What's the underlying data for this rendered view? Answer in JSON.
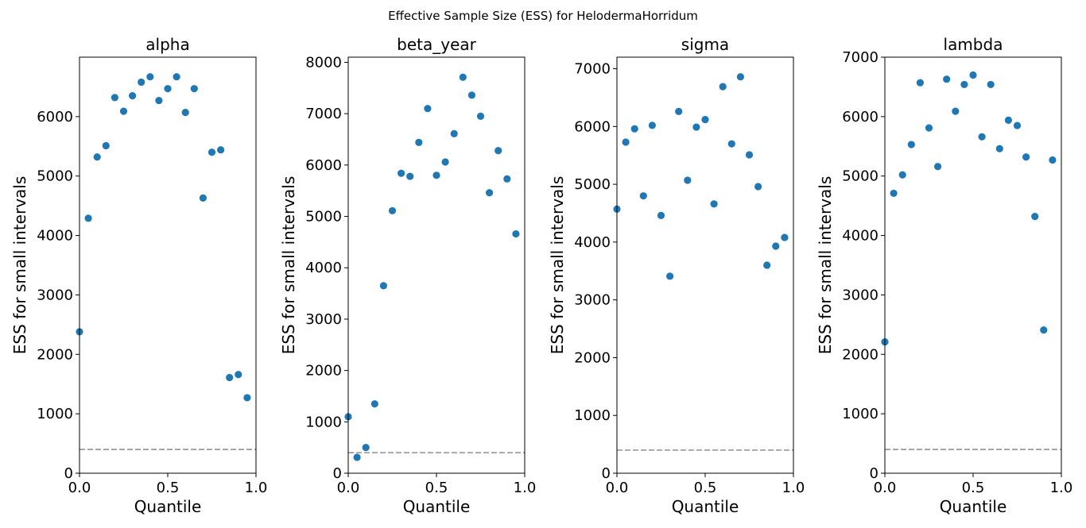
{
  "figure": {
    "suptitle": "Effective Sample Size (ESS) for HelodermaHorridum"
  },
  "colors": {
    "points": "#1f77b4",
    "reference_line": "#a0a0a0",
    "axes": "#000000"
  },
  "chart_data": [
    {
      "type": "scatter",
      "title": "alpha",
      "xlabel": "Quantile",
      "ylabel": "ESS for small intervals",
      "xlim": [
        0,
        1
      ],
      "ylim": [
        0,
        7000
      ],
      "xticks": [
        0.0,
        0.5,
        1.0
      ],
      "yticks": [
        0,
        1000,
        2000,
        3000,
        4000,
        5000,
        6000
      ],
      "reference_line": 400,
      "x": [
        0.0,
        0.05,
        0.1,
        0.15,
        0.2,
        0.25,
        0.3,
        0.35,
        0.4,
        0.45,
        0.5,
        0.55,
        0.6,
        0.65,
        0.7,
        0.75,
        0.8,
        0.85,
        0.9,
        0.95
      ],
      "y": [
        2380,
        4290,
        5320,
        5510,
        6320,
        6090,
        6350,
        6580,
        6670,
        6270,
        6470,
        6670,
        6070,
        6470,
        4630,
        5400,
        5440,
        1610,
        1660,
        1270
      ],
      "grid": false
    },
    {
      "type": "scatter",
      "title": "beta_year",
      "xlabel": "Quantile",
      "ylabel": "ESS for small intervals",
      "xlim": [
        0,
        1
      ],
      "ylim": [
        0,
        8100
      ],
      "xticks": [
        0.0,
        0.5,
        1.0
      ],
      "yticks": [
        0,
        1000,
        2000,
        3000,
        4000,
        5000,
        6000,
        7000,
        8000
      ],
      "reference_line": 400,
      "x": [
        0.0,
        0.05,
        0.1,
        0.15,
        0.2,
        0.25,
        0.3,
        0.35,
        0.4,
        0.45,
        0.5,
        0.55,
        0.6,
        0.65,
        0.7,
        0.75,
        0.8,
        0.85,
        0.9,
        0.95
      ],
      "y": [
        1100,
        310,
        500,
        1350,
        3650,
        5110,
        5840,
        5780,
        6440,
        7100,
        5800,
        6060,
        6610,
        7710,
        7360,
        6950,
        5460,
        6280,
        5730,
        4660
      ],
      "grid": false
    },
    {
      "type": "scatter",
      "title": "sigma",
      "xlabel": "Quantile",
      "ylabel": "ESS for small intervals",
      "xlim": [
        0,
        1
      ],
      "ylim": [
        0,
        7200
      ],
      "xticks": [
        0.0,
        0.5,
        1.0
      ],
      "yticks": [
        0,
        1000,
        2000,
        3000,
        4000,
        5000,
        6000,
        7000
      ],
      "reference_line": 400,
      "x": [
        0.0,
        0.05,
        0.1,
        0.15,
        0.2,
        0.25,
        0.3,
        0.35,
        0.4,
        0.45,
        0.5,
        0.55,
        0.6,
        0.65,
        0.7,
        0.75,
        0.8,
        0.85,
        0.9,
        0.95
      ],
      "y": [
        4570,
        5730,
        5960,
        4800,
        6020,
        4460,
        3410,
        6260,
        5070,
        5990,
        6120,
        4660,
        6690,
        5700,
        6860,
        5510,
        4960,
        3600,
        3930,
        4080
      ],
      "grid": false
    },
    {
      "type": "scatter",
      "title": "lambda",
      "xlabel": "Quantile",
      "ylabel": "ESS for small intervals",
      "xlim": [
        0,
        1
      ],
      "ylim": [
        0,
        7000
      ],
      "xticks": [
        0.0,
        0.5,
        1.0
      ],
      "yticks": [
        0,
        1000,
        2000,
        3000,
        4000,
        5000,
        6000,
        7000
      ],
      "reference_line": 400,
      "x": [
        0.0,
        0.05,
        0.1,
        0.15,
        0.2,
        0.25,
        0.3,
        0.35,
        0.4,
        0.45,
        0.5,
        0.55,
        0.6,
        0.65,
        0.7,
        0.75,
        0.8,
        0.85,
        0.9,
        0.95
      ],
      "y": [
        2210,
        4710,
        5020,
        5530,
        6570,
        5810,
        5160,
        6630,
        6090,
        6540,
        6700,
        5660,
        6540,
        5460,
        5940,
        5850,
        5320,
        4320,
        2410,
        5270
      ],
      "grid": false
    }
  ]
}
